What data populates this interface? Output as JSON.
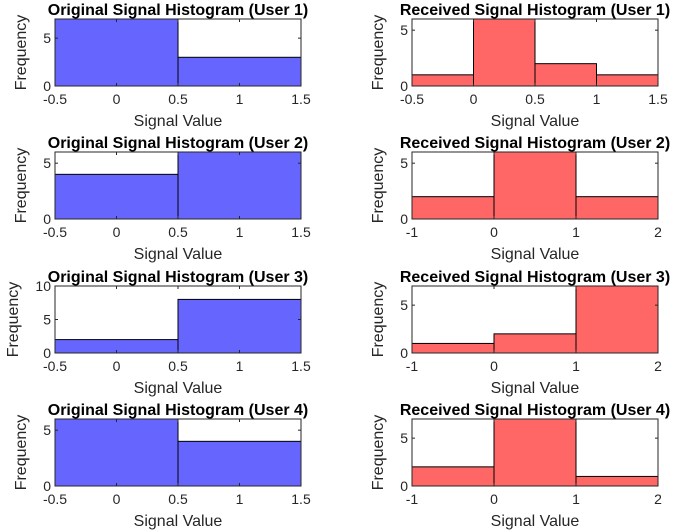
{
  "chart_data": [
    {
      "type": "bar",
      "title": "Original Signal Histogram (User 1)",
      "xlabel": "Signal Value",
      "ylabel": "Frequency",
      "bin_edges": [
        -0.5,
        0.5,
        1.5
      ],
      "values": [
        7,
        3
      ],
      "xlim": [
        -0.5,
        1.5
      ],
      "ylim": [
        0,
        7
      ],
      "xticks": [
        -0.5,
        0,
        0.5,
        1,
        1.5
      ],
      "xtick_labels": [
        "-0.5",
        "0",
        "0.5",
        "1",
        "1.5"
      ],
      "yticks": [
        0,
        5
      ],
      "ytick_labels": [
        "0",
        "5"
      ],
      "color": "#6666ff"
    },
    {
      "type": "bar",
      "title": "Received Signal Histogram (User 1)",
      "xlabel": "Signal Value",
      "ylabel": "Frequency",
      "bin_edges": [
        -0.5,
        0,
        0.5,
        1,
        1.5
      ],
      "values": [
        1,
        6,
        2,
        1
      ],
      "xlim": [
        -0.5,
        1.5
      ],
      "ylim": [
        0,
        6
      ],
      "xticks": [
        -0.5,
        0,
        0.5,
        1,
        1.5
      ],
      "xtick_labels": [
        "-0.5",
        "0",
        "0.5",
        "1",
        "1.5"
      ],
      "yticks": [
        0,
        5
      ],
      "ytick_labels": [
        "0",
        "5"
      ],
      "color": "#ff6666"
    },
    {
      "type": "bar",
      "title": "Original Signal Histogram (User 2)",
      "xlabel": "Signal Value",
      "ylabel": "Frequency",
      "bin_edges": [
        -0.5,
        0.5,
        1.5
      ],
      "values": [
        4,
        6
      ],
      "xlim": [
        -0.5,
        1.5
      ],
      "ylim": [
        0,
        6
      ],
      "xticks": [
        -0.5,
        0,
        0.5,
        1,
        1.5
      ],
      "xtick_labels": [
        "-0.5",
        "0",
        "0.5",
        "1",
        "1.5"
      ],
      "yticks": [
        0,
        5
      ],
      "ytick_labels": [
        "0",
        "5"
      ],
      "color": "#6666ff"
    },
    {
      "type": "bar",
      "title": "Received Signal Histogram (User 2)",
      "xlabel": "Signal Value",
      "ylabel": "Frequency",
      "bin_edges": [
        -1,
        0,
        1,
        2
      ],
      "values": [
        2,
        6,
        2
      ],
      "xlim": [
        -1,
        2
      ],
      "ylim": [
        0,
        6
      ],
      "xticks": [
        -1,
        0,
        1,
        2
      ],
      "xtick_labels": [
        "-1",
        "0",
        "1",
        "2"
      ],
      "yticks": [
        0,
        5
      ],
      "ytick_labels": [
        "0",
        "5"
      ],
      "color": "#ff6666"
    },
    {
      "type": "bar",
      "title": "Original Signal Histogram (User 3)",
      "xlabel": "Signal Value",
      "ylabel": "Frequency",
      "bin_edges": [
        -0.5,
        0.5,
        1.5
      ],
      "values": [
        2,
        8
      ],
      "xlim": [
        -0.5,
        1.5
      ],
      "ylim": [
        0,
        10
      ],
      "xticks": [
        -0.5,
        0,
        0.5,
        1,
        1.5
      ],
      "xtick_labels": [
        "-0.5",
        "0",
        "0.5",
        "1",
        "1.5"
      ],
      "yticks": [
        0,
        5,
        10
      ],
      "ytick_labels": [
        "0",
        "5",
        "10"
      ],
      "color": "#6666ff"
    },
    {
      "type": "bar",
      "title": "Received Signal Histogram (User 3)",
      "xlabel": "Signal Value",
      "ylabel": "Frequency",
      "bin_edges": [
        -1,
        0,
        1,
        2
      ],
      "values": [
        1,
        2,
        7
      ],
      "xlim": [
        -1,
        2
      ],
      "ylim": [
        0,
        7
      ],
      "xticks": [
        -1,
        0,
        1,
        2
      ],
      "xtick_labels": [
        "-1",
        "0",
        "1",
        "2"
      ],
      "yticks": [
        0,
        5
      ],
      "ytick_labels": [
        "0",
        "5"
      ],
      "color": "#ff6666"
    },
    {
      "type": "bar",
      "title": "Original Signal Histogram (User 4)",
      "xlabel": "Signal Value",
      "ylabel": "Frequency",
      "bin_edges": [
        -0.5,
        0.5,
        1.5
      ],
      "values": [
        6,
        4
      ],
      "xlim": [
        -0.5,
        1.5
      ],
      "ylim": [
        0,
        6
      ],
      "xticks": [
        -0.5,
        0,
        0.5,
        1,
        1.5
      ],
      "xtick_labels": [
        "-0.5",
        "0",
        "0.5",
        "1",
        "1.5"
      ],
      "yticks": [
        0,
        5
      ],
      "ytick_labels": [
        "0",
        "5"
      ],
      "color": "#6666ff"
    },
    {
      "type": "bar",
      "title": "Received Signal Histogram (User 4)",
      "xlabel": "Signal Value",
      "ylabel": "Frequency",
      "bin_edges": [
        -1,
        0,
        1,
        2
      ],
      "values": [
        2,
        7,
        1
      ],
      "xlim": [
        -1,
        2
      ],
      "ylim": [
        0,
        7
      ],
      "xticks": [
        -1,
        0,
        1,
        2
      ],
      "xtick_labels": [
        "-1",
        "0",
        "1",
        "2"
      ],
      "yticks": [
        0,
        5
      ],
      "ytick_labels": [
        "0",
        "5"
      ],
      "color": "#ff6666"
    }
  ]
}
